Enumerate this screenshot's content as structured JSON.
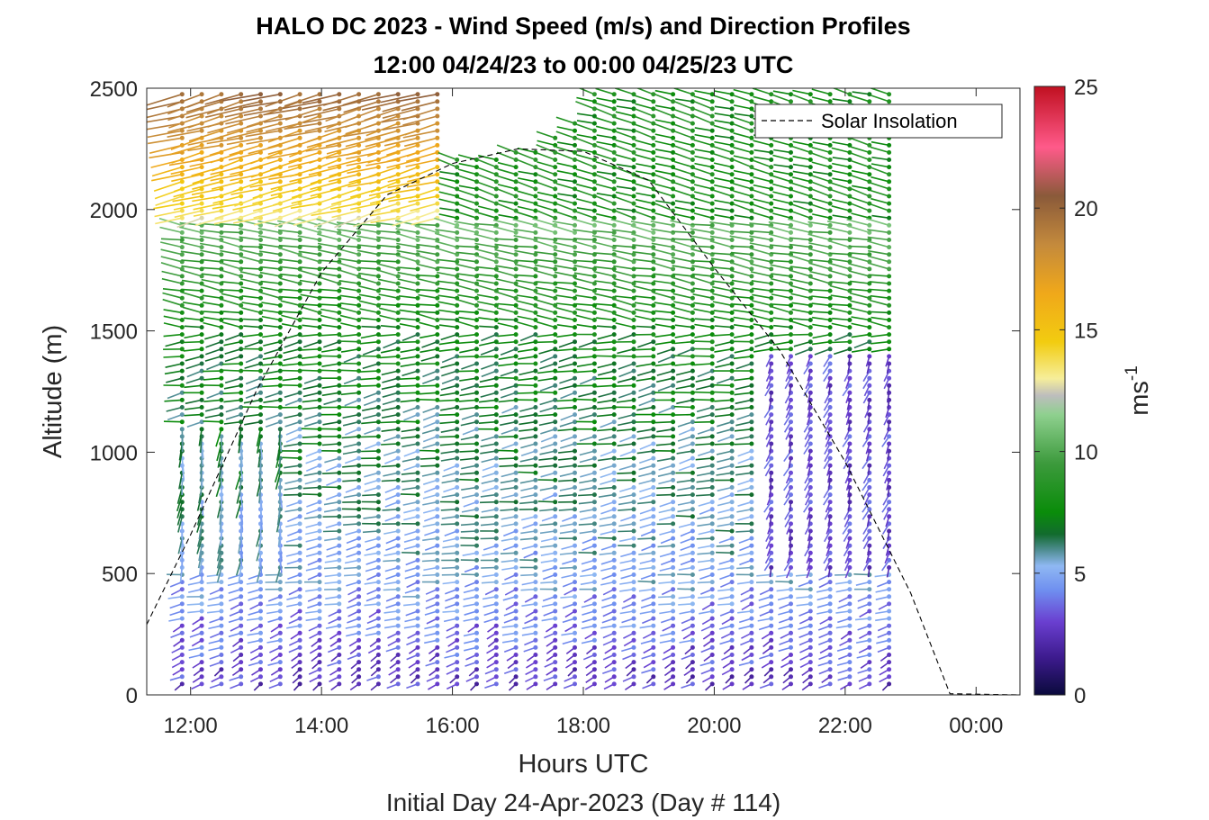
{
  "chart_data": {
    "type": "wind-barb-profile",
    "title": "HALO DC 2023 - Wind Speed (m/s) and Direction Profiles",
    "subtitle": "12:00 04/24/23 to 00:00 04/25/23  UTC",
    "xlabel": "Hours UTC",
    "ylabel": "Altitude (m)",
    "footer": "Initial Day 24-Apr-2023 (Day # 114)",
    "xlim": [
      11.33,
      24.67
    ],
    "ylim": [
      0,
      2500
    ],
    "x_ticks": [
      12,
      14,
      16,
      18,
      20,
      22,
      24
    ],
    "x_tick_labels": [
      "12:00",
      "14:00",
      "16:00",
      "18:00",
      "20:00",
      "22:00",
      "00:00"
    ],
    "y_ticks": [
      0,
      500,
      1000,
      1500,
      2000,
      2500
    ],
    "y_tick_labels": [
      "0",
      "500",
      "1000",
      "1500",
      "2000",
      "2500"
    ],
    "profile_start_hour": 11.87,
    "profile_end_hour": 22.83,
    "profile_step_hours": 0.3,
    "altitude_levels": {
      "min": 45,
      "max": 2485,
      "step": 30
    },
    "colorbar": {
      "label": "ms-1",
      "label_main": "ms",
      "label_sup": "-1",
      "range": [
        0,
        25
      ],
      "ticks": [
        0,
        5,
        10,
        15,
        20,
        25
      ],
      "tick_labels": [
        "0",
        "5",
        "10",
        "15",
        "20",
        "25"
      ],
      "stops": [
        [
          0,
          "#0a0a3c"
        ],
        [
          1.5,
          "#3c1a8c"
        ],
        [
          3,
          "#6a3fd0"
        ],
        [
          4.3,
          "#6f8ff0"
        ],
        [
          5.3,
          "#8fb8f2"
        ],
        [
          6,
          "#4a8a8a"
        ],
        [
          6.6,
          "#126b2e"
        ],
        [
          7.5,
          "#0a8c0a"
        ],
        [
          9.5,
          "#3c9a3c"
        ],
        [
          11.5,
          "#8ed08e"
        ],
        [
          12.3,
          "#bdbdbd"
        ],
        [
          13,
          "#f6ee9a"
        ],
        [
          14.5,
          "#f2cc10"
        ],
        [
          16.5,
          "#f0a81a"
        ],
        [
          18.5,
          "#c48a3c"
        ],
        [
          20.5,
          "#8a5a3a"
        ],
        [
          22.5,
          "#ff5a8a"
        ],
        [
          25,
          "#c01020"
        ]
      ]
    },
    "wind_regimes": [
      {
        "altitude_range": [
          0,
          500
        ],
        "speed_ms": "2-6",
        "direction": "southwest to west"
      },
      {
        "altitude_range": [
          500,
          1500
        ],
        "speed_ms": "4-8",
        "direction": "west"
      },
      {
        "altitude_range": [
          1500,
          2000
        ],
        "speed_ms": "7-11",
        "direction": "west-northwest"
      },
      {
        "altitude_range": [
          2000,
          2500
        ],
        "speed_ms": "13-20",
        "direction": "west",
        "time_range": [
          11.8,
          15.8
        ]
      }
    ],
    "series": [
      {
        "name": "Solar Insolation",
        "style": "dashed-black",
        "x": [
          11.33,
          12.0,
          13.0,
          14.0,
          15.0,
          16.0,
          17.0,
          18.0,
          19.0,
          20.0,
          21.0,
          22.0,
          23.0,
          23.6,
          24.67
        ],
        "y": [
          290,
          660,
          1250,
          1740,
          2060,
          2190,
          2250,
          2240,
          2120,
          1760,
          1420,
          960,
          420,
          5,
          0
        ]
      }
    ],
    "legend": {
      "entries": [
        "Solar Insolation"
      ],
      "placement": "top-right"
    }
  }
}
